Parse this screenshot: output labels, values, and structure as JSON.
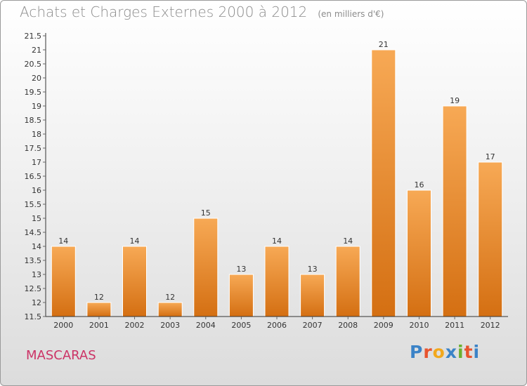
{
  "header": {
    "title": "Achats et Charges Externes 2000 à 2012",
    "unit": "(en milliers d'€)"
  },
  "footer": {
    "commune": "MASCARAS",
    "brand_letters": [
      "P",
      "r",
      "o",
      "x",
      "i",
      "t",
      "i"
    ],
    "brand_colors": [
      "#3b83c7",
      "#e8542e",
      "#f2a81d",
      "#3b83c7",
      "#6bb02f",
      "#e8542e",
      "#3b83c7"
    ]
  },
  "colors": {
    "bar_light": "#f7a955",
    "bar_dark": "#d46f12",
    "axis": "#333333",
    "grid_tick": "#666666"
  },
  "chart_data": {
    "type": "bar",
    "title": "Achats et Charges Externes 2000 à 2012",
    "subtitle": "(en milliers d'€)",
    "xlabel": "",
    "ylabel": "",
    "categories": [
      "2000",
      "2001",
      "2002",
      "2003",
      "2004",
      "2005",
      "2006",
      "2007",
      "2008",
      "2009",
      "2010",
      "2011",
      "2012"
    ],
    "values": [
      14,
      12,
      14,
      12,
      15,
      13,
      14,
      13,
      14,
      21,
      16,
      19,
      17
    ],
    "data_labels": [
      "14",
      "12",
      "14",
      "12",
      "15",
      "13",
      "14",
      "13",
      "14",
      "21",
      "16",
      "19",
      "17"
    ],
    "ylim": [
      11.5,
      21.5
    ],
    "yticks": [
      11.5,
      12,
      12.5,
      13,
      13.5,
      14,
      14.5,
      15,
      15.5,
      16,
      16.5,
      17,
      17.5,
      18,
      18.5,
      19,
      19.5,
      20,
      20.5,
      21,
      21.5
    ],
    "ytick_labels": [
      "11.5",
      "12",
      "12.5",
      "13",
      "13.5",
      "14",
      "14.5",
      "15",
      "15.5",
      "16",
      "16.5",
      "17",
      "17.5",
      "18",
      "18.5",
      "19",
      "19.5",
      "20",
      "20.5",
      "21",
      "21.5"
    ],
    "grid": false,
    "legend": "none"
  }
}
